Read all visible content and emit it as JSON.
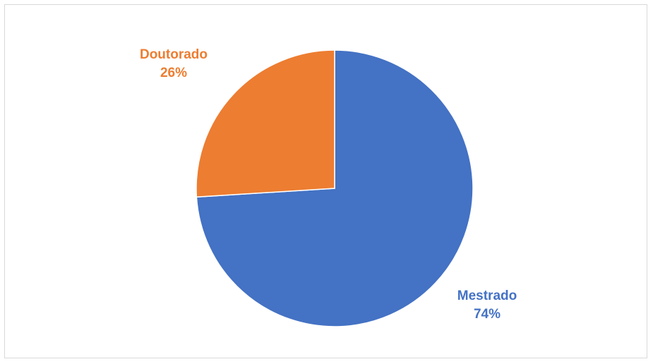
{
  "chart_data": {
    "type": "pie",
    "title": "",
    "slices": [
      {
        "label": "Mestrado",
        "value": 74,
        "value_label": "74%",
        "color": "#4472C4"
      },
      {
        "label": "Doutorado",
        "value": 26,
        "value_label": "26%",
        "color": "#ED7D31"
      }
    ],
    "start_angle": "12 o'clock",
    "direction": "clockwise",
    "legend": "none",
    "data_labels": "outside, category name and percentage"
  }
}
